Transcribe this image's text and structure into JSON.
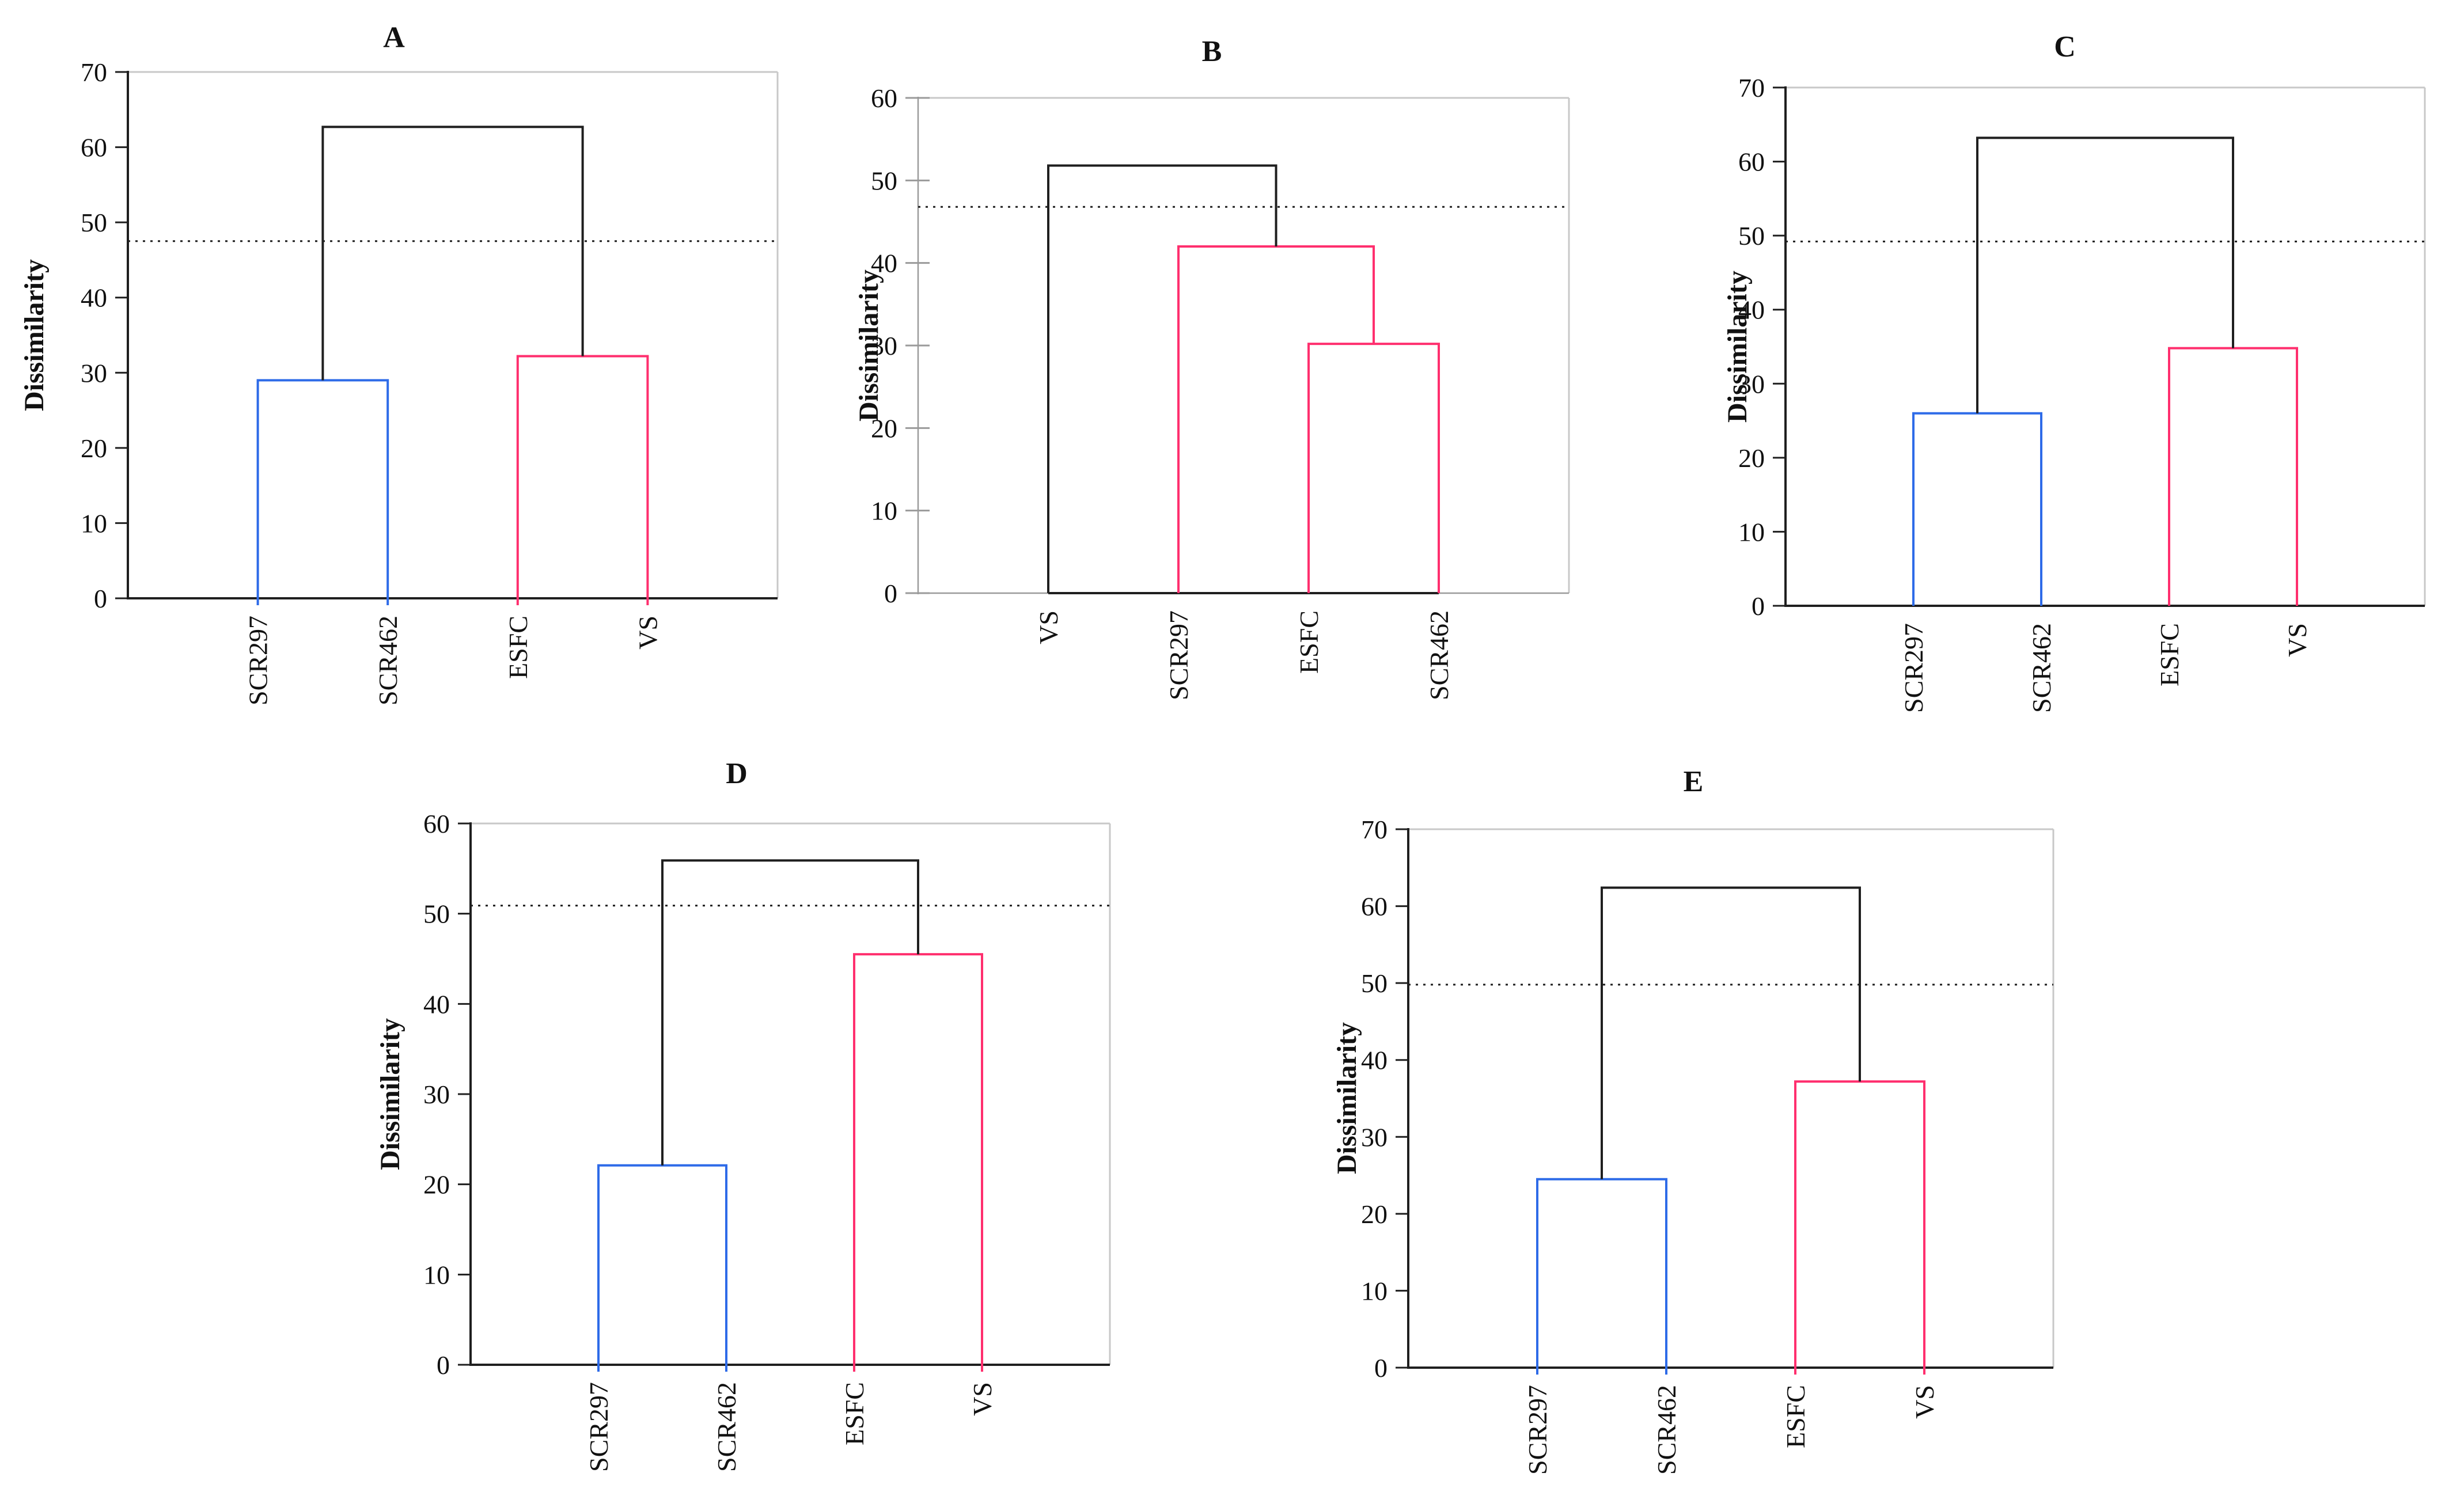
{
  "page": {
    "background": "#ffffff"
  },
  "colors": {
    "blue": "#2e6be8",
    "pink": "#ff2f6e",
    "black": "#1f1f1f",
    "gray_border": "#c8c8c8",
    "gray_axis": "#9a9a9a",
    "text": "#111111"
  },
  "chart_data": [
    {
      "id": "A",
      "type": "dendrogram",
      "title": "A",
      "ylabel": "Dissimilarity",
      "ylim": [
        0,
        70
      ],
      "yticks": [
        0,
        10,
        20,
        30,
        40,
        50,
        60,
        70
      ],
      "cutoff_line": 47.5,
      "axis_style": "black",
      "leaves": [
        {
          "label": "SCR297",
          "x": 0.2,
          "color": "blue"
        },
        {
          "label": "SCR462",
          "x": 0.4,
          "color": "blue"
        },
        {
          "label": "ESFC",
          "x": 0.6,
          "color": "pink"
        },
        {
          "label": "VS",
          "x": 0.8,
          "color": "pink"
        }
      ],
      "links": [
        {
          "color": "blue",
          "x1": 0.2,
          "h1": 0,
          "x2": 0.4,
          "h2": 0,
          "h": 29.0
        },
        {
          "color": "pink",
          "x1": 0.6,
          "h1": 0,
          "x2": 0.8,
          "h2": 0,
          "h": 32.2
        },
        {
          "color": "black",
          "x1": 0.3,
          "h1": 29.0,
          "x2": 0.7,
          "h2": 32.2,
          "h": 62.7
        }
      ],
      "baseline": [
        0.2,
        0.8
      ],
      "leaf_stubs": true
    },
    {
      "id": "B",
      "type": "dendrogram",
      "title": "B",
      "ylabel": "Dissimilarity",
      "ylim": [
        0,
        60
      ],
      "yticks": [
        0,
        10,
        20,
        30,
        40,
        50,
        60
      ],
      "cutoff_line": 46.8,
      "axis_style": "gray",
      "leaves": [
        {
          "label": "VS",
          "x": 0.2,
          "color": "black"
        },
        {
          "label": "SCR297",
          "x": 0.4,
          "color": "pink"
        },
        {
          "label": "ESFC",
          "x": 0.6,
          "color": "pink"
        },
        {
          "label": "SCR462",
          "x": 0.8,
          "color": "pink"
        }
      ],
      "links": [
        {
          "color": "pink",
          "x1": 0.6,
          "h1": 0,
          "x2": 0.8,
          "h2": 0,
          "h": 30.2
        },
        {
          "color": "pink",
          "x1": 0.4,
          "h1": 0,
          "x2": 0.7,
          "h2": 30.2,
          "h": 42.0
        },
        {
          "color": "black",
          "x1": 0.2,
          "h1": 0,
          "x2": 0.55,
          "h2": 42.0,
          "h": 51.8
        }
      ],
      "baseline": [
        0.2,
        0.8
      ],
      "leaf_stubs": false
    },
    {
      "id": "C",
      "type": "dendrogram",
      "title": "C",
      "ylabel": "Dissimilarity",
      "ylim": [
        0,
        70
      ],
      "yticks": [
        0,
        10,
        20,
        30,
        40,
        50,
        60,
        70
      ],
      "cutoff_line": 49.2,
      "axis_style": "black",
      "leaves": [
        {
          "label": "SCR297",
          "x": 0.2,
          "color": "blue"
        },
        {
          "label": "SCR462",
          "x": 0.4,
          "color": "blue"
        },
        {
          "label": "ESFC",
          "x": 0.6,
          "color": "pink"
        },
        {
          "label": "VS",
          "x": 0.8,
          "color": "pink"
        }
      ],
      "links": [
        {
          "color": "blue",
          "x1": 0.2,
          "h1": 0,
          "x2": 0.4,
          "h2": 0,
          "h": 26.0
        },
        {
          "color": "pink",
          "x1": 0.6,
          "h1": 0,
          "x2": 0.8,
          "h2": 0,
          "h": 34.8
        },
        {
          "color": "black",
          "x1": 0.3,
          "h1": 26.0,
          "x2": 0.7,
          "h2": 34.8,
          "h": 63.2
        }
      ],
      "baseline": [
        0.0,
        1.0
      ],
      "leaf_stubs": false
    },
    {
      "id": "D",
      "type": "dendrogram",
      "title": "D",
      "ylabel": "Dissimilarity",
      "ylim": [
        0,
        60
      ],
      "yticks": [
        0,
        10,
        20,
        30,
        40,
        50,
        60
      ],
      "cutoff_line": 50.9,
      "axis_style": "black",
      "leaves": [
        {
          "label": "SCR297",
          "x": 0.2,
          "color": "blue"
        },
        {
          "label": "SCR462",
          "x": 0.4,
          "color": "blue"
        },
        {
          "label": "ESFC",
          "x": 0.6,
          "color": "pink"
        },
        {
          "label": "VS",
          "x": 0.8,
          "color": "pink"
        }
      ],
      "links": [
        {
          "color": "blue",
          "x1": 0.2,
          "h1": 0,
          "x2": 0.4,
          "h2": 0,
          "h": 22.1
        },
        {
          "color": "pink",
          "x1": 0.6,
          "h1": 0,
          "x2": 0.8,
          "h2": 0,
          "h": 45.5
        },
        {
          "color": "black",
          "x1": 0.3,
          "h1": 22.1,
          "x2": 0.7,
          "h2": 45.5,
          "h": 55.9
        }
      ],
      "baseline": [
        0.2,
        0.8
      ],
      "leaf_stubs": true
    },
    {
      "id": "E",
      "type": "dendrogram",
      "title": "E",
      "ylabel": "Dissimilarity",
      "ylim": [
        0,
        70
      ],
      "yticks": [
        0,
        10,
        20,
        30,
        40,
        50,
        60,
        70
      ],
      "cutoff_line": 49.8,
      "axis_style": "black",
      "leaves": [
        {
          "label": "SCR297",
          "x": 0.2,
          "color": "blue"
        },
        {
          "label": "SCR462",
          "x": 0.4,
          "color": "blue"
        },
        {
          "label": "ESFC",
          "x": 0.6,
          "color": "pink"
        },
        {
          "label": "VS",
          "x": 0.8,
          "color": "pink"
        }
      ],
      "links": [
        {
          "color": "blue",
          "x1": 0.2,
          "h1": 0,
          "x2": 0.4,
          "h2": 0,
          "h": 24.5
        },
        {
          "color": "pink",
          "x1": 0.6,
          "h1": 0,
          "x2": 0.8,
          "h2": 0,
          "h": 37.2
        },
        {
          "color": "black",
          "x1": 0.3,
          "h1": 24.5,
          "x2": 0.7,
          "h2": 37.2,
          "h": 62.4
        }
      ],
      "baseline": [
        0.2,
        0.8
      ],
      "leaf_stubs": true
    }
  ]
}
